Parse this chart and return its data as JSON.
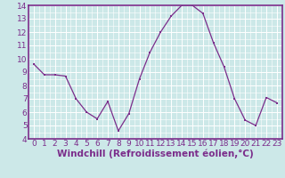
{
  "x": [
    0,
    1,
    2,
    3,
    4,
    5,
    6,
    7,
    8,
    9,
    10,
    11,
    12,
    13,
    14,
    15,
    16,
    17,
    18,
    19,
    20,
    21,
    22,
    23
  ],
  "y": [
    9.6,
    8.8,
    8.8,
    8.7,
    7.0,
    6.0,
    5.5,
    6.8,
    4.6,
    5.9,
    8.5,
    10.5,
    12.0,
    13.2,
    14.0,
    14.0,
    13.4,
    11.2,
    9.4,
    7.0,
    5.4,
    5.0,
    7.1,
    6.7
  ],
  "xlabel": "Windchill (Refroidissement éolien,°C)",
  "ylim": [
    4,
    14
  ],
  "xlim": [
    -0.5,
    23.5
  ],
  "yticks": [
    4,
    5,
    6,
    7,
    8,
    9,
    10,
    11,
    12,
    13,
    14
  ],
  "xticks": [
    0,
    1,
    2,
    3,
    4,
    5,
    6,
    7,
    8,
    9,
    10,
    11,
    12,
    13,
    14,
    15,
    16,
    17,
    18,
    19,
    20,
    21,
    22,
    23
  ],
  "line_color": "#7b2d8b",
  "marker_color": "#7b2d8b",
  "bg_color": "#cce8e8",
  "grid_color": "#b0d8d8",
  "border_color": "#7b2d8b",
  "tick_label_color": "#7b2d8b",
  "xlabel_color": "#7b2d8b",
  "tick_label_fontsize": 6.5,
  "xlabel_fontsize": 7.5
}
